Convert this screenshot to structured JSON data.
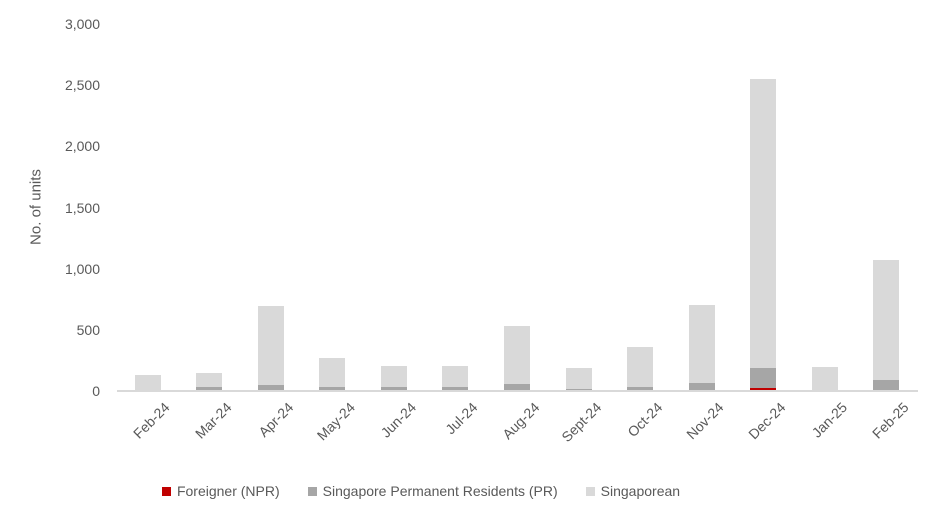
{
  "chart": {
    "background": "#FFFFFF",
    "text_color": "#595959",
    "axis_line_color": "#D9D9D9"
  },
  "chart_data": {
    "type": "bar",
    "stacked": true,
    "title": "",
    "xlabel": "",
    "ylabel": "No. of units",
    "ylim": [
      0,
      3000
    ],
    "grid": false,
    "legend_position": "bottom",
    "yticks": [
      {
        "value": 0,
        "label": "0"
      },
      {
        "value": 500,
        "label": "500"
      },
      {
        "value": 1000,
        "label": "1,000"
      },
      {
        "value": 1500,
        "label": "1,500"
      },
      {
        "value": 2000,
        "label": "2,000"
      },
      {
        "value": 2500,
        "label": "2,500"
      },
      {
        "value": 3000,
        "label": "3,000"
      }
    ],
    "categories": [
      "Feb-24",
      "Mar-24",
      "Apr-24",
      "May-24",
      "Jun-24",
      "Jul-24",
      "Aug-24",
      "Sept-24",
      "Oct-24",
      "Nov-24",
      "Dec-24",
      "Jan-25",
      "Feb-25"
    ],
    "series": [
      {
        "name": "Foreigner (NPR)",
        "color": "#C00000",
        "values": [
          0,
          0,
          0,
          0,
          0,
          0,
          0,
          0,
          0,
          12,
          25,
          0,
          0
        ]
      },
      {
        "name": "Singapore Permanent Residents (PR)",
        "color": "#A6A6A6",
        "values": [
          10,
          30,
          50,
          35,
          30,
          30,
          57,
          14,
          30,
          55,
          165,
          12,
          93
        ]
      },
      {
        "name": "Singaporean",
        "color": "#D9D9D9",
        "values": [
          125,
          115,
          645,
          235,
          175,
          175,
          478,
          172,
          326,
          640,
          2360,
          183,
          977
        ]
      }
    ]
  }
}
